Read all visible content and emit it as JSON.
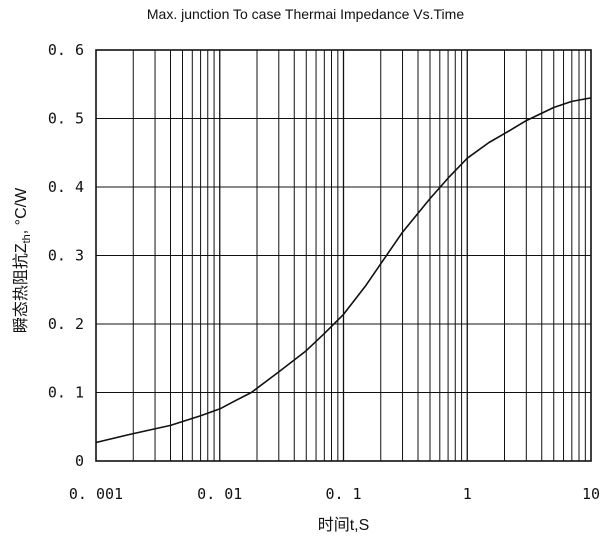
{
  "chart_data": {
    "type": "line",
    "title": "Max. junction To case Thermai Impedance Vs.Time",
    "xlabel": "时间t,S",
    "ylabel_main": "瞬态热阻抗Z",
    "ylabel_sub": "th",
    "ylabel_unit": ", °C/W",
    "x_scale": "log",
    "xlim": [
      0.001,
      10
    ],
    "ylim": [
      0,
      0.6
    ],
    "x_ticks": [
      0.001,
      0.01,
      0.1,
      1,
      10
    ],
    "x_tick_labels": [
      "0. 001",
      "0. 01",
      "0. 1",
      "1",
      "10"
    ],
    "y_ticks": [
      0,
      0.1,
      0.2,
      0.3,
      0.4,
      0.5,
      0.6
    ],
    "y_tick_labels": [
      "0",
      "0. 1",
      "0. 2",
      "0. 3",
      "0. 4",
      "0. 5",
      "0. 6"
    ],
    "grid": true,
    "line_color": "#111111",
    "series": [
      {
        "x": [
          0.001,
          0.002,
          0.004,
          0.007,
          0.01,
          0.013,
          0.018,
          0.03,
          0.05,
          0.07,
          0.1,
          0.15,
          0.2,
          0.3,
          0.5,
          0.7,
          1,
          1.5,
          2,
          3,
          5,
          7,
          10
        ],
        "values": [
          0.027,
          0.04,
          0.052,
          0.066,
          0.076,
          0.087,
          0.1,
          0.13,
          0.161,
          0.186,
          0.214,
          0.255,
          0.288,
          0.334,
          0.383,
          0.413,
          0.442,
          0.465,
          0.478,
          0.497,
          0.516,
          0.525,
          0.53
        ]
      }
    ]
  }
}
